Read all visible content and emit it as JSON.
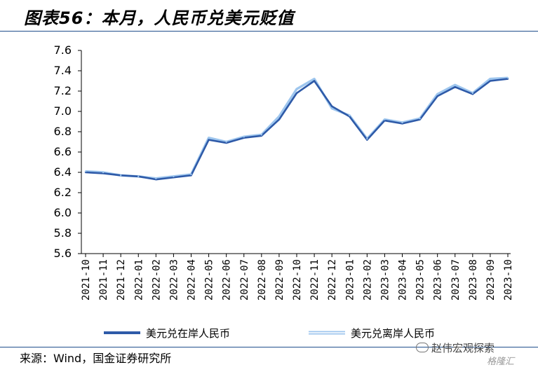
{
  "header": {
    "title": "图表56：本月，人民币兑美元贬值"
  },
  "footer": {
    "source": "来源：Wind，国金证券研究所",
    "watermark": "赵伟宏观探索",
    "watermark2": "格隆汇"
  },
  "icons": [
    "wechat-icon"
  ],
  "chart_data": {
    "type": "line",
    "title": "",
    "xlabel": "",
    "ylabel": "",
    "ylim": [
      5.6,
      7.6
    ],
    "yticks": [
      "7.6",
      "7.4",
      "7.2",
      "7.0",
      "6.8",
      "6.6",
      "6.4",
      "6.2",
      "6.0",
      "5.8",
      "5.6"
    ],
    "categories": [
      "2021-10",
      "2021-11",
      "2021-12",
      "2022-01",
      "2022-02",
      "2022-03",
      "2022-04",
      "2022-05",
      "2022-06",
      "2022-07",
      "2022-08",
      "2022-09",
      "2022-10",
      "2022-11",
      "2022-12",
      "2023-01",
      "2023-02",
      "2023-03",
      "2023-04",
      "2023-05",
      "2023-06",
      "2023-07",
      "2023-08",
      "2023-09",
      "2023-10"
    ],
    "legend_position": "bottom",
    "grid": false,
    "series": [
      {
        "name": "美元兑在岸人民币",
        "color": "#2e5aa8",
        "values": [
          6.4,
          6.39,
          6.37,
          6.36,
          6.33,
          6.35,
          6.37,
          6.72,
          6.69,
          6.74,
          6.76,
          6.92,
          7.18,
          7.3,
          7.05,
          6.95,
          6.72,
          6.91,
          6.88,
          6.92,
          7.15,
          7.24,
          7.17,
          7.3,
          7.32
        ]
      },
      {
        "name": "美元兑离岸人民币",
        "color": "#9ec6ee",
        "values": [
          6.41,
          6.4,
          6.37,
          6.36,
          6.34,
          6.36,
          6.38,
          6.74,
          6.7,
          6.75,
          6.77,
          6.95,
          7.22,
          7.32,
          7.03,
          6.96,
          6.73,
          6.92,
          6.89,
          6.93,
          7.17,
          7.26,
          7.18,
          7.32,
          7.33
        ]
      }
    ]
  }
}
